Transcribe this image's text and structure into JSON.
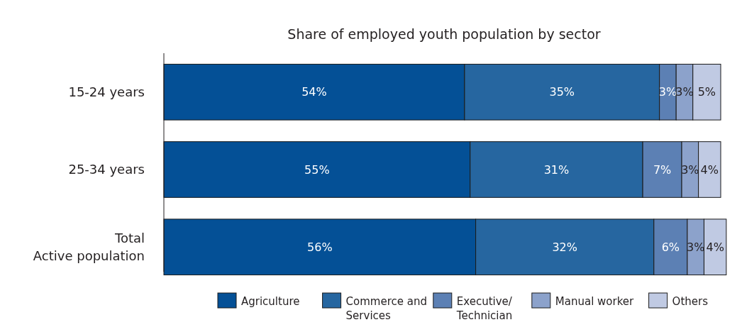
{
  "chart_data": {
    "type": "bar",
    "orientation": "horizontal",
    "stacked": true,
    "title": "Share of employed youth population by sector",
    "categories": [
      "15-24 years",
      "25-34 years",
      "Total\nActive population"
    ],
    "legend": "bottom",
    "series": [
      {
        "name": "Agriculture",
        "color": "#045096",
        "values": [
          54,
          55,
          56
        ],
        "value_labels": [
          "54%",
          "55%",
          "56%"
        ]
      },
      {
        "name": "Commerce and Services",
        "color": "#2666a0",
        "values": [
          35,
          31,
          32
        ],
        "value_labels": [
          "35%",
          "31%",
          "32%"
        ]
      },
      {
        "name": "Executive/ Technician",
        "color": "#5c80b4",
        "values": [
          3,
          7,
          6
        ],
        "value_labels": [
          "3%",
          "7%",
          "6%"
        ]
      },
      {
        "name": "Manual worker",
        "color": "#8ca2cb",
        "values": [
          3,
          3,
          3
        ],
        "value_labels": [
          "3%",
          "3%",
          "3%"
        ]
      },
      {
        "name": "Others",
        "color": "#c0cae3",
        "values": [
          5,
          4,
          4
        ],
        "value_labels": [
          "5%",
          "4%",
          "4%"
        ]
      }
    ]
  }
}
